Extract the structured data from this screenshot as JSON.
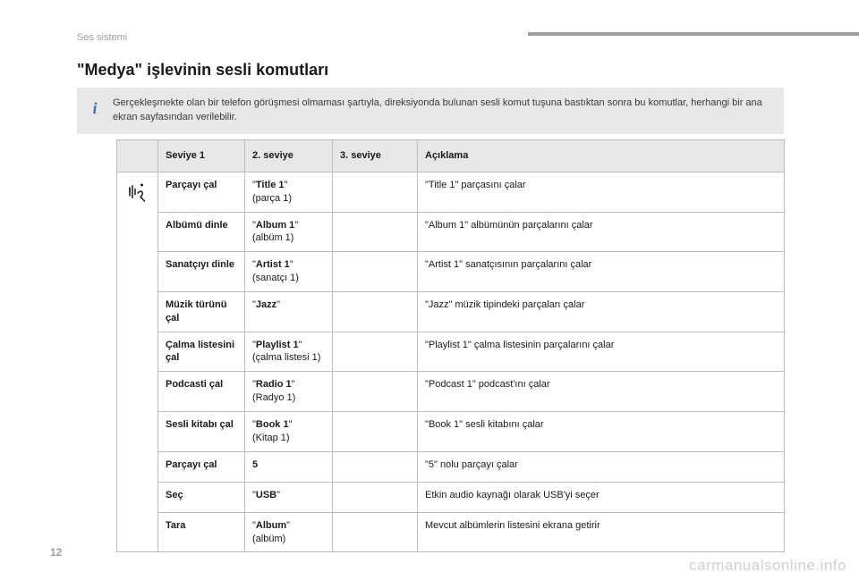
{
  "section": "Ses sistemi",
  "title": "\"Medya\" işlevinin sesli komutları",
  "info": {
    "icon": "i",
    "text": "Gerçekleşmekte olan bir telefon görüşmesi olmaması şartıyla, direksiyonda bulunan sesli komut tuşuna bastıktan sonra bu komutlar, herhangi bir ana ekran sayfasından verilebilir."
  },
  "table": {
    "headers": {
      "icon": "",
      "l1": "Seviye 1",
      "l2": "2. seviye",
      "l3": "3. seviye",
      "desc": "Açıklama"
    },
    "rows": [
      {
        "l1": "Parçayı çal",
        "l2_bold": "Title 1",
        "l2_q": true,
        "l2_sub": "(parça 1)",
        "l3": "",
        "desc": "\"Title 1\" parçasını çalar"
      },
      {
        "l1": "Albümü dinle",
        "l2_bold": "Album 1",
        "l2_q": true,
        "l2_sub": "(albüm 1)",
        "l3": "",
        "desc": "\"Album 1\" albümünün parçalarını çalar"
      },
      {
        "l1": "Sanatçıyı dinle",
        "l2_bold": "Artist 1",
        "l2_q": true,
        "l2_sub": "(sanatçı 1)",
        "l3": "",
        "desc": "\"Artist 1\" sanatçısının parçalarını çalar"
      },
      {
        "l1": "Müzik türünü çal",
        "l2_bold": "Jazz",
        "l2_q": true,
        "l2_sub": "",
        "l3": "",
        "desc": "\"Jazz\" müzik tipindeki parçaları çalar"
      },
      {
        "l1": "Çalma listesini çal",
        "l2_bold": "Playlist 1",
        "l2_q": true,
        "l2_sub": "(çalma listesi 1)",
        "l3": "",
        "desc": "\"Playlist 1\" çalma listesinin parçalarını çalar"
      },
      {
        "l1": "Podcasti çal",
        "l2_bold": "Radio 1",
        "l2_q": true,
        "l2_sub": "(Radyo 1)",
        "l3": "",
        "desc": "\"Podcast 1\" podcast'ını çalar"
      },
      {
        "l1": "Sesli kitabı çal",
        "l2_bold": "Book 1",
        "l2_q": true,
        "l2_sub": "(Kitap 1)",
        "l3": "",
        "desc": "\"Book 1\" sesli kitabını çalar"
      },
      {
        "l1": "Parçayı çal",
        "l2_bold": "5",
        "l2_q": false,
        "l2_sub": "",
        "l3": "",
        "desc": "\"5\" nolu parçayı çalar"
      },
      {
        "l1": "Seç",
        "l2_bold": "USB",
        "l2_q": true,
        "l2_sub": "",
        "l3": "",
        "desc": "Etkin audio kaynağı olarak USB'yi seçer"
      },
      {
        "l1": "Tara",
        "l2_bold": "Album",
        "l2_q": true,
        "l2_sub": "(albüm)",
        "l3": "",
        "desc": "Mevcut albümlerin listesini ekrana getirir"
      }
    ]
  },
  "pageNumber": "12",
  "watermark": "carmanualsonline.info",
  "colors": {
    "gray_bg": "#e6e7e8",
    "border": "#bdbdbd",
    "muted": "#9e9e9e",
    "blue": "#3a73b3",
    "text": "#1a1a1a"
  }
}
